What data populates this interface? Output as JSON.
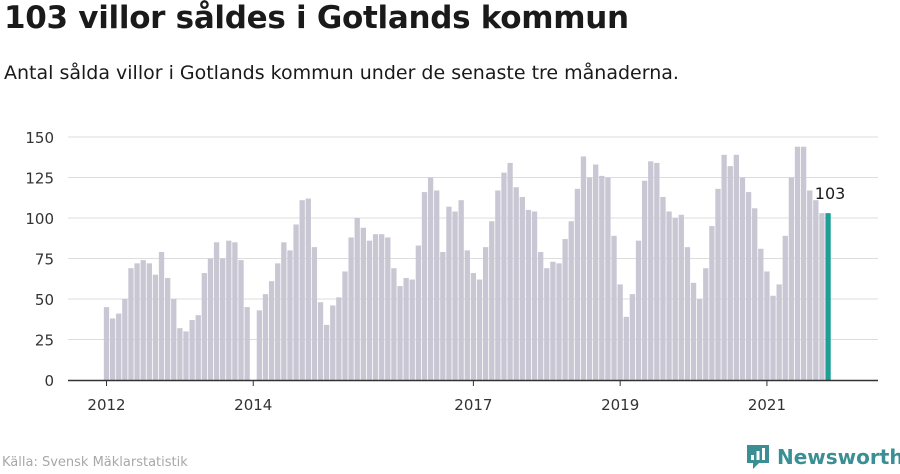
{
  "title": "103 villor såldes i Gotlands kommun",
  "subtitle": "Antal sålda villor i Gotlands kommun under de senaste tre månaderna.",
  "source": "Källa: Svensk Mäklarstatistik",
  "brand": {
    "name": "Newsworthy",
    "icon": "newsworthy-logo-icon"
  },
  "colors": {
    "bar": "#c8c7d3",
    "highlight": "#1f9e96",
    "grid": "#dddddd",
    "axis": "#333333",
    "brand": "#3a8f94"
  },
  "chart_data": {
    "type": "bar",
    "title": "",
    "xlabel": "",
    "ylabel": "",
    "ylim": [
      0,
      150
    ],
    "yticks": [
      0,
      25,
      50,
      75,
      100,
      125,
      150
    ],
    "xtick_labels": [
      "2012",
      "2014",
      "2017",
      "2019",
      "2021"
    ],
    "grid": true,
    "highlight_label": "103",
    "values": [
      45,
      38,
      41,
      50,
      69,
      72,
      74,
      72,
      65,
      79,
      63,
      50,
      32,
      30,
      37,
      40,
      66,
      75,
      85,
      75,
      86,
      85,
      74,
      45,
      null,
      43,
      53,
      61,
      72,
      85,
      80,
      96,
      111,
      112,
      82,
      48,
      34,
      46,
      51,
      67,
      88,
      100,
      94,
      86,
      90,
      90,
      88,
      69,
      58,
      63,
      62,
      83,
      116,
      125,
      117,
      79,
      107,
      104,
      111,
      80,
      66,
      62,
      82,
      98,
      117,
      128,
      134,
      119,
      113,
      105,
      104,
      79,
      69,
      73,
      72,
      87,
      98,
      118,
      138,
      125,
      133,
      126,
      125,
      89,
      59,
      39,
      53,
      86,
      123,
      135,
      134,
      113,
      104,
      100,
      102,
      82,
      60,
      50,
      69,
      95,
      118,
      139,
      132,
      139,
      125,
      116,
      106,
      81,
      67,
      52,
      59,
      89,
      125,
      144,
      144,
      117,
      111,
      103,
      103
    ]
  }
}
